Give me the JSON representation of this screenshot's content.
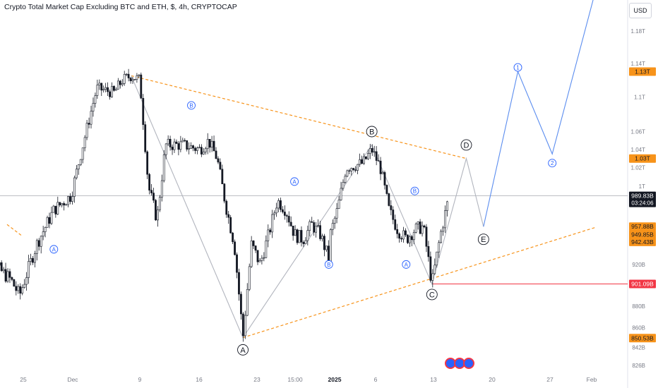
{
  "header": {
    "title": "Crypto Total Market Cap Excluding BTC and ETH, $, 4h, CRYPTOCAP",
    "currency_button": "USD"
  },
  "colors": {
    "up_candle": "#ffffff",
    "down_candle": "#131722",
    "wave_path": "#b2b5be",
    "projection_path": "#5b8def",
    "triangle_lines": "#f7931a",
    "support_line": "#f23645",
    "orange_tag": "#f7931a",
    "red_tag": "#f23645",
    "black_tag": "#131722",
    "wave_label_blue": "#2962ff",
    "wave_label_black": "#131722"
  },
  "chart_data": {
    "type": "candlestick",
    "symbol": "Crypto Total Market Cap Excluding BTC and ETH",
    "interval": "4h",
    "y_unit": "USD",
    "y_scale": "log",
    "ylim": [
      "826B",
      "1.23T"
    ],
    "grid": false,
    "x_tick_labels": [
      "25",
      "Dec",
      "9",
      "16",
      "23",
      "15:00",
      "2025",
      "6",
      "13",
      "20",
      "27",
      "Feb"
    ],
    "y_tick_labels": [
      "1.18T",
      "1.14T",
      "1.1T",
      "1.06T",
      "1.04T",
      "1.02T",
      "1T",
      "920B",
      "880B",
      "860B",
      "842B",
      "826B"
    ],
    "price_tags": [
      {
        "label": "1.13T",
        "value": 1130,
        "style": "orange"
      },
      {
        "label": "1.03T",
        "value": 1030,
        "style": "orange"
      },
      {
        "label": "989.83B",
        "value": 989.83,
        "style": "black",
        "sub": "03:24:06"
      },
      {
        "label": "957.88B",
        "value": 957.88,
        "style": "orange"
      },
      {
        "label": "949.85B",
        "value": 949.85,
        "style": "orange"
      },
      {
        "label": "942.43B",
        "value": 942.43,
        "style": "orange"
      },
      {
        "label": "901.09B",
        "value": 901.09,
        "style": "red"
      },
      {
        "label": "850.53B",
        "value": 850.53,
        "style": "orange"
      }
    ],
    "price_path_anchors": [
      [
        "Nov 21",
        930
      ],
      [
        "Nov 23",
        920
      ],
      [
        "Nov 25",
        905
      ],
      [
        "Nov 26",
        890
      ],
      [
        "Nov 28",
        940
      ],
      [
        "Nov 30",
        975
      ],
      [
        "Dec 1",
        990
      ],
      [
        "Dec 3",
        1070
      ],
      [
        "Dec 4",
        1110
      ],
      [
        "Dec 6",
        1105
      ],
      [
        "Dec 7",
        1120
      ],
      [
        "Dec 8",
        1125
      ],
      [
        "Dec 9",
        1120
      ],
      [
        "Dec 10",
        1000
      ],
      [
        "Dec 11",
        965
      ],
      [
        "Dec 12",
        1045
      ],
      [
        "Dec 14",
        1045
      ],
      [
        "Dec 16",
        1040
      ],
      [
        "Dec 17",
        1050
      ],
      [
        "Dec 18",
        1030
      ],
      [
        "Dec 19",
        980
      ],
      [
        "Dec 20",
        940
      ],
      [
        "Dec 21",
        851
      ],
      [
        "Dec 22",
        940
      ],
      [
        "Dec 23",
        920
      ],
      [
        "Dec 24",
        950
      ],
      [
        "Dec 25",
        985
      ],
      [
        "Dec 26",
        975
      ],
      [
        "Dec 27",
        950
      ],
      [
        "Dec 28",
        945
      ],
      [
        "Dec 29",
        960
      ],
      [
        "Dec 30",
        950
      ],
      [
        "Dec 31",
        925
      ],
      [
        "Jan 1",
        945
      ],
      [
        "Jan 2",
        975
      ],
      [
        "Jan 3",
        1020
      ],
      [
        "Jan 5",
        1025
      ],
      [
        "Jan 6",
        1040
      ],
      [
        "Jan 7",
        1020
      ],
      [
        "Jan 8",
        975
      ],
      [
        "Jan 9",
        955
      ],
      [
        "Jan 10",
        945
      ],
      [
        "Jan 11",
        955
      ],
      [
        "Jan 12",
        958
      ],
      [
        "Jan 13",
        901
      ],
      [
        "Jan 14",
        950
      ],
      [
        "Jan 15",
        989.83
      ]
    ],
    "wave_path": {
      "labels": [
        "A",
        "B",
        "C",
        "D",
        "E"
      ],
      "points": [
        [
          "Dec 8",
          1125
        ],
        [
          "Dec 21",
          851
        ],
        [
          "Jan 6",
          1045
        ],
        [
          "Jan 13",
          901
        ],
        [
          "Jan 17",
          1030
        ],
        [
          "Jan 19",
          957.88
        ]
      ]
    },
    "projection_path": {
      "labels": [
        "1",
        "2"
      ],
      "points": [
        [
          "Jan 19",
          957.88
        ],
        [
          "Jan 23",
          1130
        ],
        [
          "Jan 27",
          1035
        ],
        [
          "Feb 1",
          1230
        ]
      ]
    },
    "triangle_upper": [
      [
        "Dec 8",
        1125
      ],
      [
        "Jan 17",
        1030
      ]
    ],
    "triangle_lower": [
      [
        "Dec 21",
        851
      ],
      [
        "Feb 1",
        957
      ]
    ],
    "support_line": {
      "value": 901.09,
      "from": "Jan 13"
    },
    "current_price_line": 989.83,
    "wave_labels": [
      {
        "text": "A",
        "at": [
          "Nov 30",
          935
        ],
        "style": "blue"
      },
      {
        "text": "B",
        "at": [
          "Dec 15",
          1090
        ],
        "style": "blue"
      },
      {
        "text": "A",
        "at": [
          "Dec 21",
          840
        ],
        "style": "black-large"
      },
      {
        "text": "A",
        "at": [
          "Dec 27",
          1005
        ],
        "style": "blue"
      },
      {
        "text": "B",
        "at": [
          "Dec 31",
          920
        ],
        "style": "blue"
      },
      {
        "text": "B",
        "at": [
          "Jan 6",
          1060
        ],
        "style": "black-large"
      },
      {
        "text": "B",
        "at": [
          "Jan 11",
          995
        ],
        "style": "blue"
      },
      {
        "text": "A",
        "at": [
          "Jan 10",
          920
        ],
        "style": "blue"
      },
      {
        "text": "C",
        "at": [
          "Jan 13",
          891
        ],
        "style": "black-large"
      },
      {
        "text": "D",
        "at": [
          "Jan 17",
          1045
        ],
        "style": "black-large"
      },
      {
        "text": "E",
        "at": [
          "Jan 19",
          945
        ],
        "style": "black-large"
      },
      {
        "text": "1",
        "at": [
          "Jan 23",
          1135
        ],
        "style": "blue"
      },
      {
        "text": "2",
        "at": [
          "Jan 27",
          1025
        ],
        "style": "blue"
      }
    ]
  }
}
